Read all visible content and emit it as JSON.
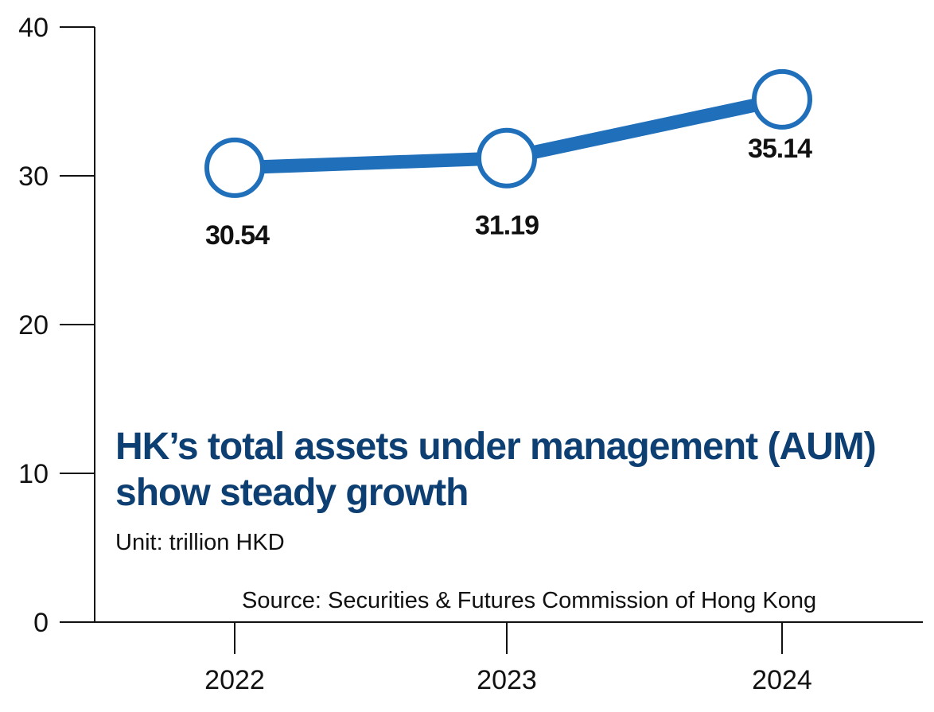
{
  "chart_data": {
    "type": "line",
    "title": "HK’s total assets under management (AUM) show steady growth",
    "subtitle": "Unit: trillion HKD",
    "source": "Source: Securities & Futures Commission of Hong Kong",
    "categories": [
      "2022",
      "2023",
      "2024"
    ],
    "series": [
      {
        "values": [
          30.54,
          31.19,
          35.14
        ]
      }
    ],
    "data_labels": [
      "30.54",
      "31.19",
      "35.14"
    ],
    "ylim": [
      0,
      40
    ],
    "yticks": [
      0,
      10,
      20,
      30,
      40
    ],
    "ytick_labels": [
      "0",
      "10",
      "20",
      "30",
      "40"
    ],
    "grid": false,
    "legend": "none",
    "colors": {
      "line": "#1f6fba",
      "marker_fill": "#ffffff",
      "title": "#0d3f72",
      "axis": "#111111"
    }
  }
}
